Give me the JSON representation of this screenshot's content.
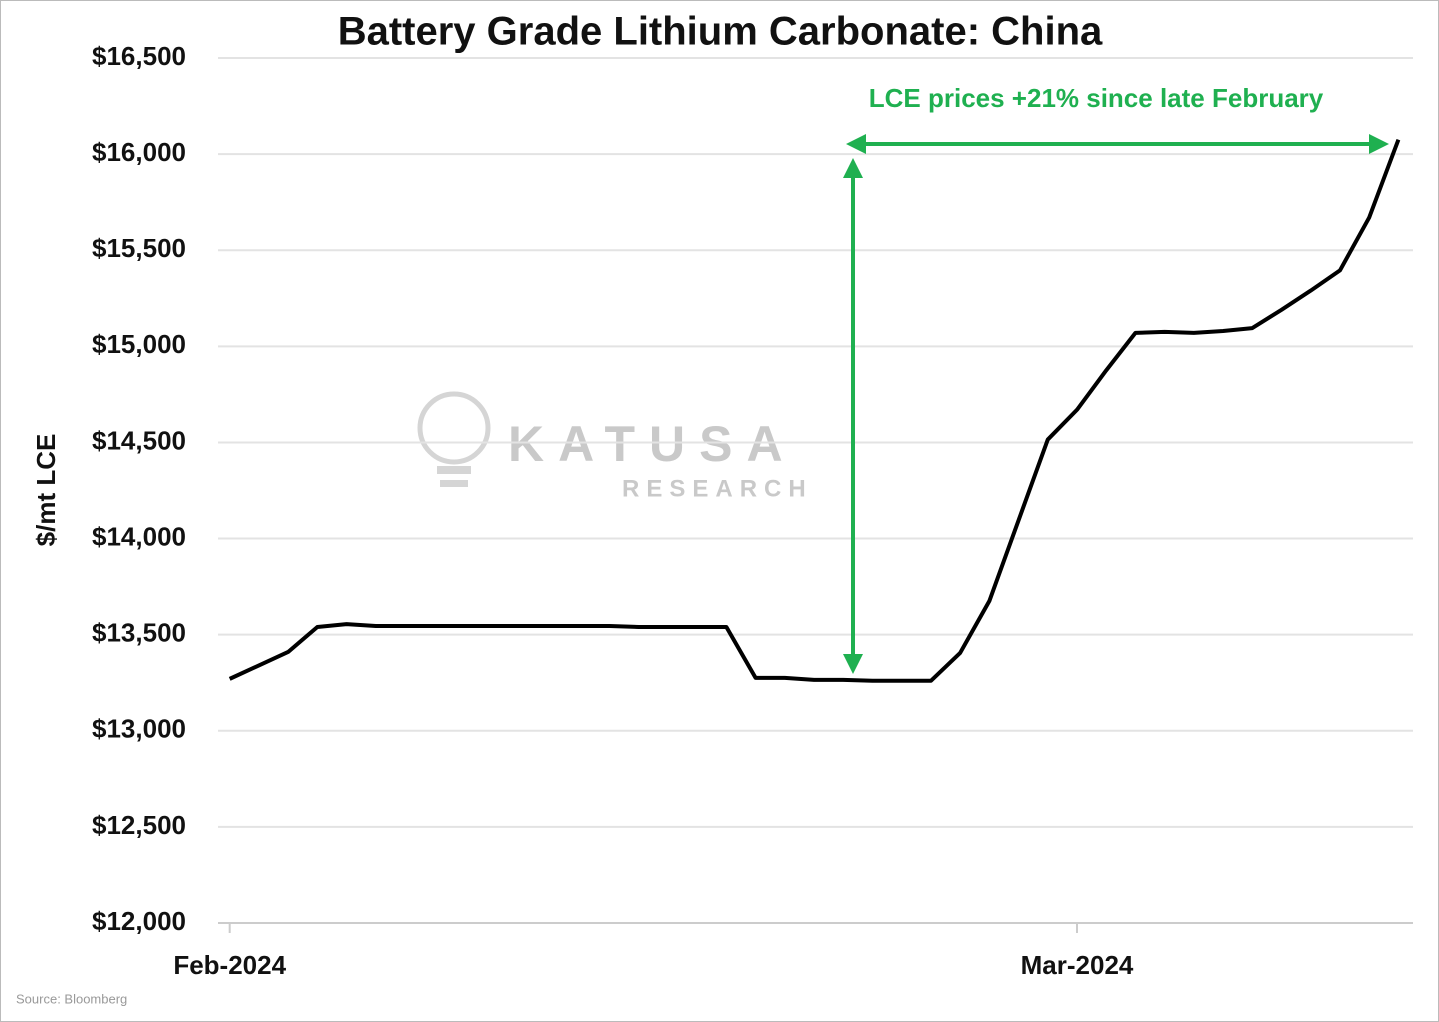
{
  "chart_data": {
    "type": "line",
    "title": "Battery Grade Lithium Carbonate: China",
    "y_label": "$/mt LCE",
    "source": "Source: Bloomberg",
    "annotation": "LCE prices +21% since late February",
    "watermark": {
      "brand": "KATUSA",
      "sub": "RESEARCH"
    },
    "x": [
      0,
      1,
      2,
      3,
      4,
      5,
      6,
      7,
      8,
      9,
      10,
      11,
      12,
      13,
      14,
      15,
      16,
      17,
      18,
      19,
      20,
      21,
      22,
      23,
      24,
      25,
      26,
      27,
      28,
      29,
      30,
      31,
      32,
      33,
      34,
      35,
      36,
      37,
      38,
      39,
      40
    ],
    "xlim": [
      -0.4,
      40.5
    ],
    "xticks": [
      {
        "value": 0,
        "label": "Feb-2024"
      },
      {
        "value": 29,
        "label": "Mar-2024"
      }
    ],
    "series": [
      {
        "name": "Battery Grade Lithium Carbonate",
        "color": "#000000",
        "values": [
          13270,
          13340,
          13410,
          13540,
          13555,
          13545,
          13545,
          13545,
          13545,
          13545,
          13545,
          13545,
          13545,
          13545,
          13540,
          13540,
          13540,
          13540,
          13275,
          13275,
          13265,
          13265,
          13260,
          13260,
          13260,
          13405,
          13675,
          14095,
          14515,
          14670,
          14875,
          15070,
          15075,
          15070,
          15080,
          15095,
          15190,
          15290,
          15395,
          15670,
          16075
        ]
      }
    ],
    "ylim": [
      12000,
      16500
    ],
    "yticks": [
      {
        "value": 12000,
        "label": "$12,000"
      },
      {
        "value": 12500,
        "label": "$12,500"
      },
      {
        "value": 13000,
        "label": "$13,000"
      },
      {
        "value": 13500,
        "label": "$13,500"
      },
      {
        "value": 14000,
        "label": "$14,000"
      },
      {
        "value": 14500,
        "label": "$14,500"
      },
      {
        "value": 15000,
        "label": "$15,000"
      },
      {
        "value": 15500,
        "label": "$15,500"
      },
      {
        "value": 16000,
        "label": "$16,000"
      },
      {
        "value": 16500,
        "label": "$16,500"
      }
    ],
    "grid": true,
    "annotation_color": "#1fb050"
  }
}
